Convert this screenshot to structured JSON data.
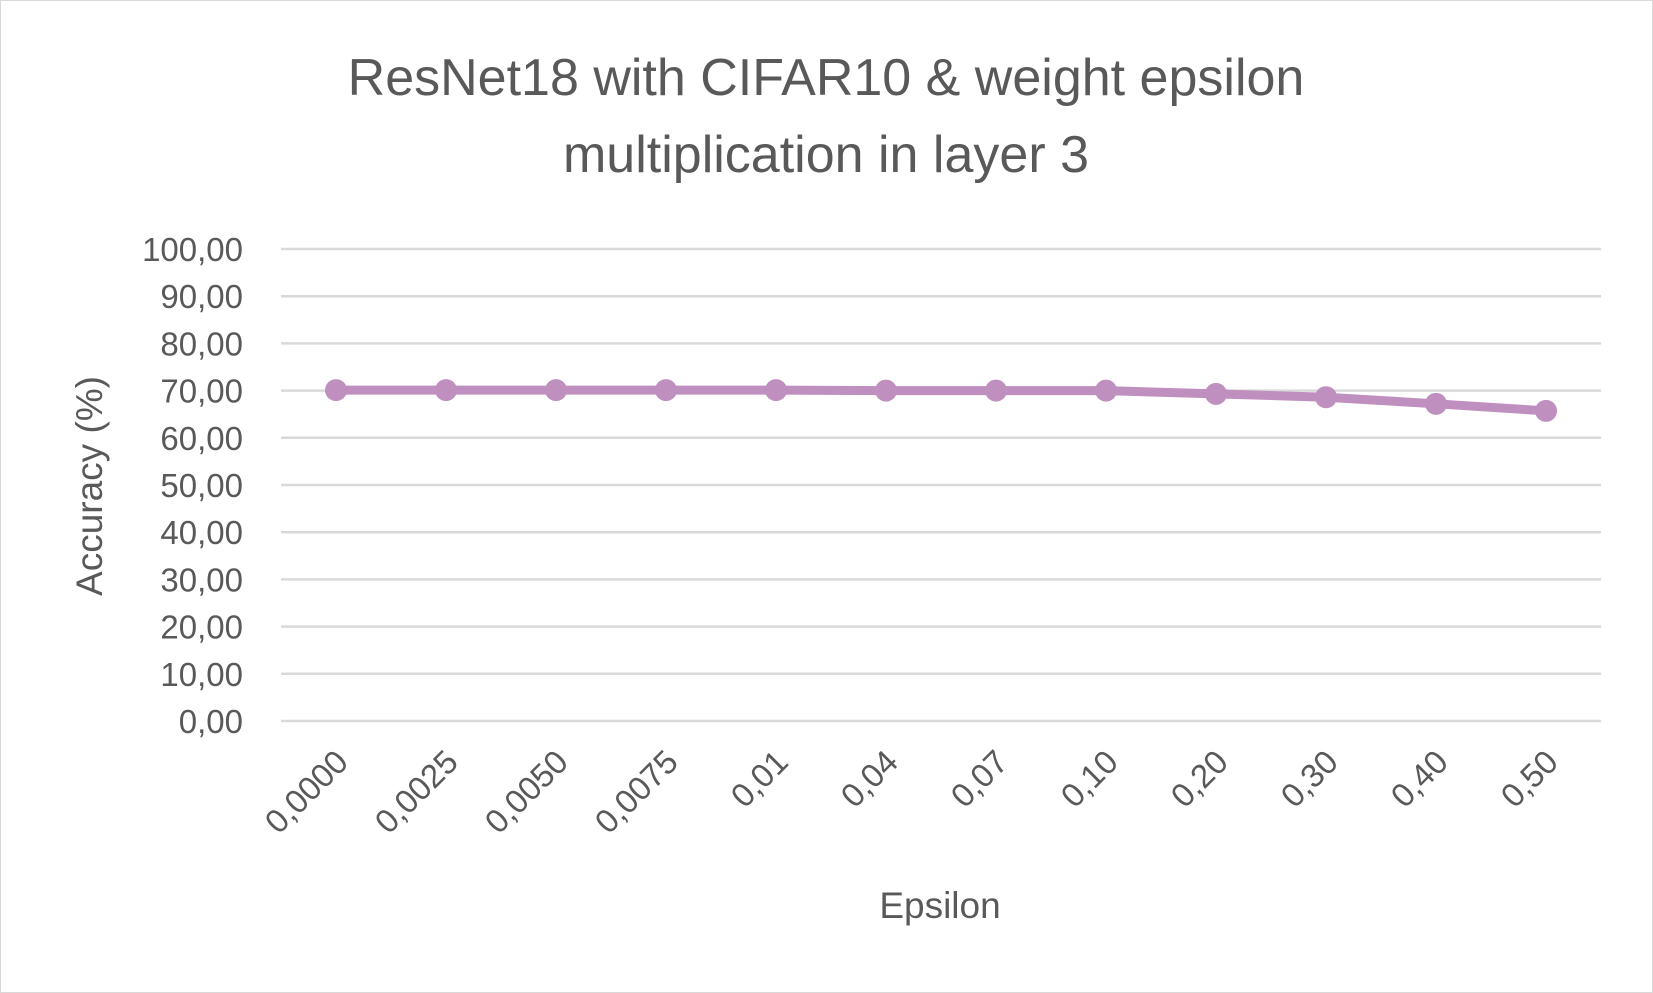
{
  "chart_data": {
    "type": "line",
    "title_lines": [
      "ResNet18 with CIFAR10 & weight epsilon",
      "multiplication in layer 3"
    ],
    "xlabel": "Epsilon",
    "ylabel": "Accuracy (%)",
    "categories": [
      "0,0000",
      "0,0025",
      "0,0050",
      "0,0075",
      "0,01",
      "0,04",
      "0,07",
      "0,10",
      "0,20",
      "0,30",
      "0,40",
      "0,50"
    ],
    "y_tick_labels": [
      "0,00",
      "10,00",
      "20,00",
      "30,00",
      "40,00",
      "50,00",
      "60,00",
      "70,00",
      "80,00",
      "90,00",
      "100,00"
    ],
    "ylim": [
      0,
      100
    ],
    "y_step": 10,
    "grid": true,
    "legend": "none",
    "series": [
      {
        "color": "#bf8fbf",
        "values": [
          70.1,
          70.1,
          70.1,
          70.1,
          70.1,
          70.0,
          70.0,
          70.0,
          69.3,
          68.6,
          67.2,
          65.7
        ]
      }
    ]
  }
}
